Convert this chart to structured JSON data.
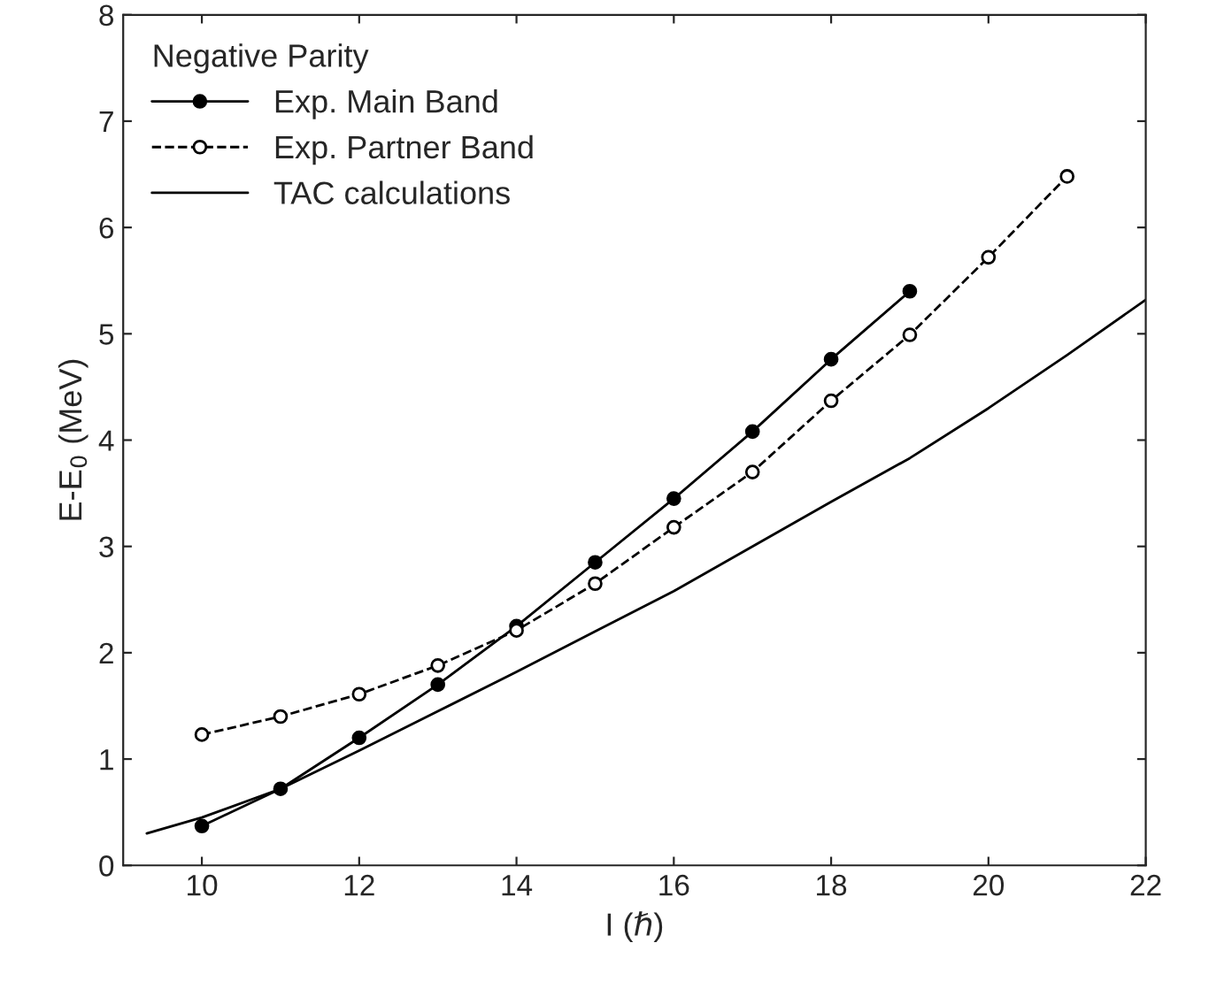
{
  "chart_data": {
    "type": "line",
    "xlabel": "I (ℏ)",
    "ylabel": "E-E$_{0}$ (MeV)",
    "legend_title": "Negative Parity",
    "legend": "top left",
    "grid": false,
    "xlim": [
      9,
      22
    ],
    "xticks": [
      10,
      12,
      14,
      16,
      18,
      20,
      22
    ],
    "ylim": [
      0,
      8
    ],
    "yticks": [
      0,
      1,
      2,
      3,
      4,
      5,
      6,
      7,
      8
    ],
    "series": [
      {
        "name": "Exp. Main Band",
        "color": "#000000",
        "marker": "circle",
        "line_style": "solid",
        "x": [
          10,
          11,
          12,
          13,
          14,
          15,
          16,
          17,
          18,
          19
        ],
        "values": [
          0.37,
          0.72,
          1.2,
          1.7,
          2.25,
          2.85,
          3.45,
          4.08,
          4.76,
          5.4
        ]
      },
      {
        "name": "Exp. Partner Band",
        "color": "#000000",
        "marker": "circle",
        "line_style": "dashed",
        "x": [
          10,
          11,
          12,
          13,
          14,
          15,
          16,
          17,
          18,
          19,
          20,
          21
        ],
        "values": [
          1.23,
          1.4,
          1.61,
          1.88,
          2.21,
          2.65,
          3.18,
          3.7,
          4.37,
          4.99,
          5.72,
          6.48
        ]
      },
      {
        "name": "TAC calculations",
        "color": "#000000",
        "marker": "none",
        "line_style": "solid",
        "x": [
          9.3,
          10,
          11,
          12,
          13,
          14,
          15,
          16,
          17,
          18,
          19,
          20,
          21,
          22
        ],
        "values": [
          0.3,
          0.45,
          0.72,
          1.08,
          1.45,
          1.82,
          2.2,
          2.58,
          3.0,
          3.42,
          3.83,
          4.3,
          4.8,
          5.32
        ]
      }
    ]
  }
}
